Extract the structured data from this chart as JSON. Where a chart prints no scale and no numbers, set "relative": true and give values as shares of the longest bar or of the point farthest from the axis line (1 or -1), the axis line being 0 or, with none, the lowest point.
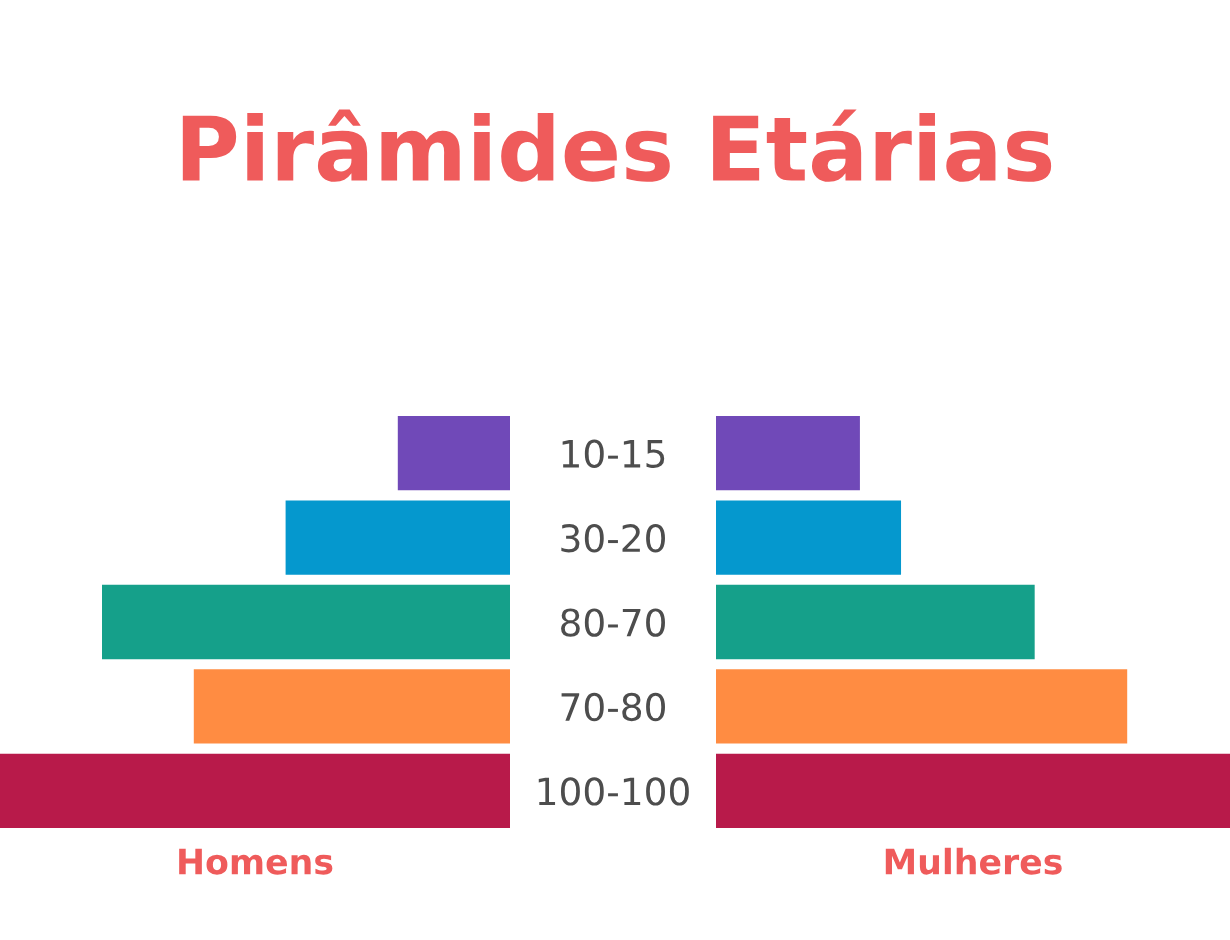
{
  "chart_data": [
    {
      "type": "bar",
      "orientation": "horizontal",
      "relative": true,
      "title": "Pirâmides Etárias",
      "categories": [
        "10-15",
        "30-20",
        "80-70",
        "70-80",
        "100-100"
      ],
      "series": [
        {
          "name": "Homens",
          "colors": [
            "#7049b8",
            "#0598ce",
            "#15a08a",
            "#ff8c42",
            "#b81a4a"
          ],
          "values": [
            -0.22,
            -0.44,
            -0.8,
            -0.62,
            -1.0
          ]
        }
      ]
    },
    {
      "type": "bar",
      "orientation": "horizontal",
      "relative": true,
      "categories": [
        null,
        null,
        null,
        null,
        null
      ],
      "series": [
        {
          "name": "Mulheres",
          "colors": [
            "#7049b8",
            "#0598ce",
            "#15a08a",
            "#ff8c42",
            "#b81a4a"
          ],
          "values": [
            0.28,
            0.36,
            0.62,
            0.8,
            1.0
          ]
        }
      ]
    }
  ]
}
